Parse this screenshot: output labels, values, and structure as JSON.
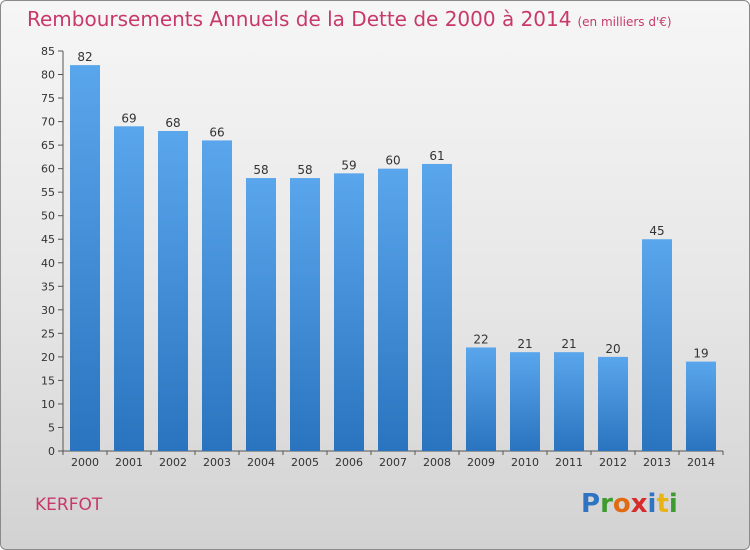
{
  "header": {
    "title": "Remboursements Annuels de la Dette de 2000 à 2014",
    "unit": "(en milliers d'€)"
  },
  "footer": {
    "commune": "KERFOT",
    "logo_letters": [
      "P",
      "r",
      "o",
      "x",
      "i",
      "t",
      "i"
    ]
  },
  "colors": {
    "title": "#c8396b",
    "bar_top": "#5aa6ec",
    "bar_bottom": "#2a74bf",
    "axis": "#555555"
  },
  "chart_data": {
    "type": "bar",
    "title": "Remboursements Annuels de la Dette de 2000 à 2014",
    "xlabel": "",
    "ylabel": "",
    "categories": [
      "2000",
      "2001",
      "2002",
      "2003",
      "2004",
      "2005",
      "2006",
      "2007",
      "2008",
      "2009",
      "2010",
      "2011",
      "2012",
      "2013",
      "2014"
    ],
    "values": [
      82,
      69,
      68,
      66,
      58,
      58,
      59,
      60,
      61,
      22,
      21,
      21,
      20,
      45,
      19
    ],
    "ylim": [
      0,
      85
    ],
    "yticks": [
      0,
      5,
      10,
      15,
      20,
      25,
      30,
      35,
      40,
      45,
      50,
      55,
      60,
      65,
      70,
      75,
      80,
      85
    ],
    "grid": false,
    "legend": "none"
  }
}
